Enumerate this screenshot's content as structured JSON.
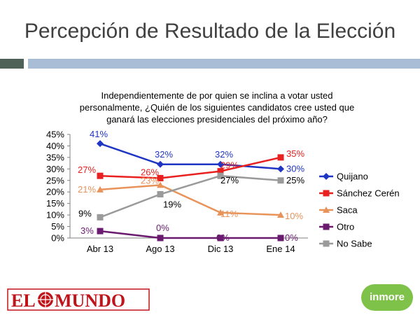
{
  "slide": {
    "title": "Percepción de Resultado de la Elección",
    "logo_left": "EL MUNDO",
    "logo_right": "inmore"
  },
  "chart_data": {
    "type": "line",
    "title": "Independientemente de por quien se inclina a votar usted personalmente, ¿Quién de los siguientes candidatos cree usted que ganará las elecciones presidenciales del próximo año?",
    "categories": [
      "Abr 13",
      "Ago 13",
      "Dic 13",
      "Ene 14"
    ],
    "ylim": [
      0,
      45
    ],
    "ytick_labels": [
      "0%",
      "5%",
      "10%",
      "15%",
      "20%",
      "25%",
      "30%",
      "35%",
      "40%",
      "45%"
    ],
    "legend_position": "right",
    "grid": false,
    "series": [
      {
        "name": "Quijano",
        "values": [
          41,
          32,
          32,
          30
        ],
        "labels": [
          "41%",
          "32%",
          "32%",
          "30%"
        ],
        "color": "#1f35c4",
        "marker": "diamond"
      },
      {
        "name": "Sánchez Cerén",
        "values": [
          27,
          26,
          29,
          35
        ],
        "labels": [
          "27%",
          "26%",
          "29%",
          "35%"
        ],
        "color": "#e8201f",
        "marker": "square"
      },
      {
        "name": "Saca",
        "values": [
          21,
          23,
          11,
          10
        ],
        "labels": [
          "21%",
          "23%",
          "11%",
          "10%"
        ],
        "color": "#e8935a",
        "marker": "triangle"
      },
      {
        "name": "Otro",
        "values": [
          3,
          0,
          0,
          0
        ],
        "labels": [
          "3%",
          "0%",
          "0%",
          "0%"
        ],
        "color": "#6a1a6f",
        "marker": "square"
      },
      {
        "name": "No Sabe",
        "values": [
          9,
          19,
          27,
          25
        ],
        "labels": [
          "9%",
          "19%",
          "27%",
          "25%"
        ],
        "color": "#9a9a9a",
        "marker": "square"
      }
    ]
  }
}
